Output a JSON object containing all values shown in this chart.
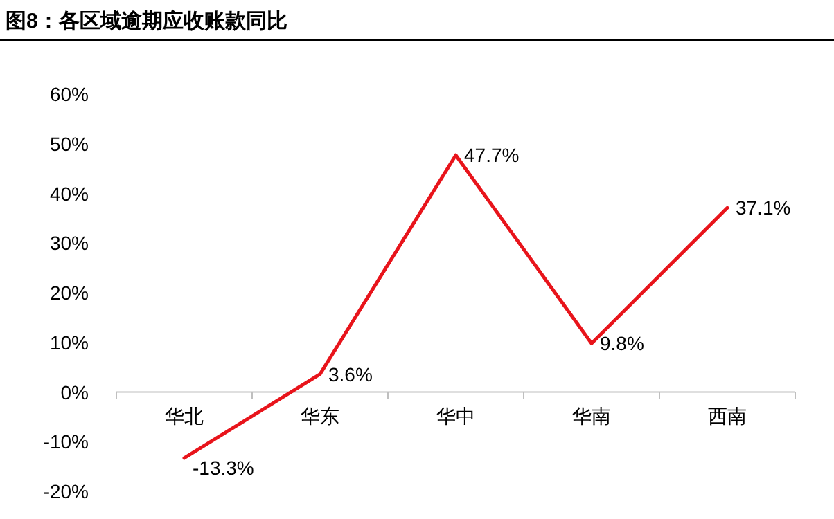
{
  "chart_data": {
    "type": "line",
    "title": "图8：各区域逾期应收账款同比",
    "categories": [
      "华北",
      "华东",
      "华中",
      "华南",
      "西南"
    ],
    "series": [
      {
        "color": "#e8141b",
        "values": [
          -13.3,
          3.6,
          47.7,
          9.8,
          37.1
        ],
        "value_labels": [
          "-13.3%",
          "3.6%",
          "47.7%",
          "9.8%",
          "37.1%"
        ]
      }
    ],
    "ylim": [
      -20,
      60
    ],
    "yticks": [
      {
        "value": -20,
        "label": "-20%"
      },
      {
        "value": -10,
        "label": "-10%"
      },
      {
        "value": 0,
        "label": "0%"
      },
      {
        "value": 10,
        "label": "10%"
      },
      {
        "value": 20,
        "label": "20%"
      },
      {
        "value": 30,
        "label": "30%"
      },
      {
        "value": 40,
        "label": "40%"
      },
      {
        "value": 50,
        "label": "50%"
      },
      {
        "value": 60,
        "label": "60%"
      }
    ],
    "marker": "none",
    "line_style": "solid"
  }
}
